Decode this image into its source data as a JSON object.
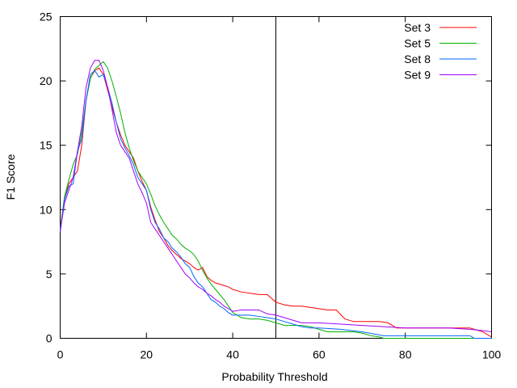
{
  "chart_data": {
    "type": "line",
    "title": "",
    "xlabel": "Probability Threshold",
    "ylabel": "F1 Score",
    "xlim": [
      0,
      100
    ],
    "ylim": [
      0,
      25
    ],
    "xticks": [
      0,
      20,
      40,
      60,
      80,
      100
    ],
    "yticks": [
      0,
      5,
      10,
      15,
      20,
      25
    ],
    "grid": false,
    "legend_position": "top-right",
    "reference_lines": [
      {
        "orientation": "vertical",
        "x": 50
      }
    ],
    "series": [
      {
        "name": "Set 3",
        "color": "#ff0000",
        "x": [
          0,
          1,
          2,
          3,
          4,
          5,
          6,
          7,
          8,
          9,
          10,
          11,
          12,
          13,
          14,
          15,
          16,
          17,
          18,
          19,
          20,
          21,
          22,
          23,
          24,
          25,
          26,
          27,
          28,
          29,
          30,
          31,
          32,
          33,
          34,
          35,
          36,
          37,
          38,
          39,
          40,
          42,
          44,
          46,
          48,
          50,
          52,
          54,
          56,
          58,
          60,
          62,
          64,
          66,
          68,
          70,
          72,
          74,
          76,
          78,
          80,
          85,
          90,
          95,
          98,
          100
        ],
        "y": [
          8.3,
          10.8,
          12.0,
          12.5,
          13.0,
          15.0,
          18.5,
          20.2,
          20.8,
          21.0,
          20.5,
          19.3,
          18.0,
          16.8,
          15.8,
          15.0,
          14.5,
          14.0,
          13.0,
          12.2,
          11.5,
          10.2,
          9.2,
          8.3,
          7.8,
          7.2,
          6.8,
          6.5,
          6.2,
          6.0,
          5.8,
          5.5,
          5.3,
          5.5,
          4.8,
          4.5,
          4.3,
          4.2,
          4.1,
          4.0,
          3.8,
          3.6,
          3.5,
          3.4,
          3.4,
          2.8,
          2.6,
          2.5,
          2.5,
          2.4,
          2.3,
          2.2,
          2.2,
          1.5,
          1.3,
          1.3,
          1.3,
          1.3,
          1.2,
          0.8,
          0.8,
          0.8,
          0.8,
          0.8,
          0.5,
          0.1
        ]
      },
      {
        "name": "Set 5",
        "color": "#00b000",
        "x": [
          0,
          1,
          2,
          3,
          4,
          5,
          6,
          7,
          8,
          9,
          10,
          11,
          12,
          13,
          14,
          15,
          16,
          17,
          18,
          19,
          20,
          21,
          22,
          23,
          24,
          25,
          26,
          27,
          28,
          29,
          30,
          31,
          32,
          33,
          34,
          35,
          36,
          37,
          38,
          39,
          40,
          42,
          44,
          46,
          48,
          50,
          52,
          54,
          56,
          58,
          60,
          62,
          64,
          66,
          68,
          70,
          72,
          74,
          75,
          80,
          85,
          90,
          95,
          100
        ],
        "y": [
          8.5,
          11.0,
          12.3,
          13.5,
          14.3,
          16.0,
          18.5,
          20.2,
          20.9,
          21.2,
          21.5,
          21.0,
          20.0,
          18.8,
          17.5,
          16.0,
          14.8,
          13.8,
          13.0,
          12.5,
          12.0,
          11.2,
          10.3,
          9.6,
          9.0,
          8.5,
          8.0,
          7.7,
          7.3,
          7.0,
          6.8,
          6.5,
          6.0,
          5.3,
          4.7,
          4.2,
          3.8,
          3.4,
          3.0,
          2.5,
          2.0,
          1.6,
          1.5,
          1.5,
          1.4,
          1.2,
          1.0,
          1.0,
          1.0,
          0.9,
          0.7,
          0.5,
          0.5,
          0.5,
          0.5,
          0.4,
          0.2,
          0.1,
          0.0,
          0.0,
          0.0,
          0.0,
          0.0,
          0.0
        ]
      },
      {
        "name": "Set 8",
        "color": "#0066ff",
        "x": [
          0,
          1,
          2,
          3,
          4,
          5,
          6,
          7,
          8,
          9,
          10,
          11,
          12,
          13,
          14,
          15,
          16,
          17,
          18,
          19,
          20,
          21,
          22,
          23,
          24,
          25,
          26,
          27,
          28,
          29,
          30,
          31,
          32,
          33,
          34,
          35,
          36,
          37,
          38,
          39,
          40,
          42,
          44,
          46,
          48,
          50,
          52,
          54,
          56,
          58,
          60,
          65,
          70,
          75,
          80,
          85,
          90,
          95,
          96,
          100
        ],
        "y": [
          8.3,
          10.8,
          11.8,
          12.0,
          14.5,
          15.5,
          18.5,
          20.5,
          20.8,
          20.3,
          20.5,
          19.5,
          18.3,
          16.8,
          15.5,
          14.8,
          14.2,
          13.5,
          12.5,
          12.0,
          11.5,
          10.0,
          9.0,
          8.5,
          7.8,
          7.5,
          7.0,
          6.7,
          6.3,
          5.8,
          5.5,
          4.8,
          4.3,
          4.0,
          3.5,
          3.0,
          2.8,
          2.5,
          2.3,
          2.0,
          1.8,
          1.8,
          1.8,
          1.7,
          1.6,
          1.5,
          1.3,
          1.1,
          0.9,
          0.8,
          0.8,
          0.7,
          0.5,
          0.2,
          0.2,
          0.2,
          0.2,
          0.2,
          0.0,
          0.0
        ]
      },
      {
        "name": "Set 9",
        "color": "#a000ff",
        "x": [
          0,
          1,
          2,
          3,
          4,
          5,
          6,
          7,
          8,
          9,
          10,
          11,
          12,
          13,
          14,
          15,
          16,
          17,
          18,
          19,
          20,
          21,
          22,
          23,
          24,
          25,
          26,
          27,
          28,
          29,
          30,
          31,
          32,
          33,
          34,
          35,
          36,
          37,
          38,
          39,
          40,
          42,
          44,
          46,
          48,
          50,
          52,
          54,
          56,
          58,
          60,
          65,
          70,
          75,
          80,
          85,
          90,
          95,
          98,
          100
        ],
        "y": [
          8.3,
          10.5,
          11.5,
          12.5,
          14.5,
          16.5,
          19.5,
          21.0,
          21.6,
          21.6,
          20.8,
          19.5,
          17.8,
          16.0,
          15.0,
          14.5,
          14.0,
          13.0,
          12.0,
          11.3,
          10.5,
          9.0,
          8.5,
          8.0,
          7.5,
          7.0,
          6.5,
          6.0,
          5.5,
          5.0,
          4.7,
          4.3,
          4.0,
          3.8,
          3.5,
          3.3,
          3.0,
          2.8,
          2.5,
          2.3,
          2.1,
          2.2,
          2.2,
          2.2,
          1.9,
          1.8,
          1.6,
          1.4,
          1.2,
          1.2,
          1.2,
          1.1,
          1.0,
          0.9,
          0.8,
          0.8,
          0.8,
          0.7,
          0.6,
          0.5
        ]
      }
    ]
  }
}
